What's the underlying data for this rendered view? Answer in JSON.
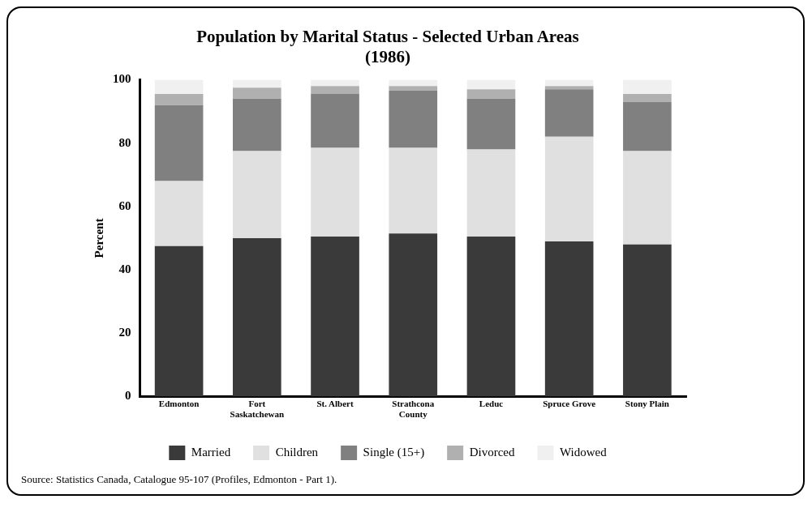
{
  "chart_data": {
    "type": "bar",
    "title": "Population by Marital Status - Selected Urban Areas",
    "subtitle": "(1986)",
    "ylabel": "Percent",
    "categories": [
      "Edmonton",
      "Fort\nSaskatchewan",
      "St. Albert",
      "Strathcona\nCounty",
      "Leduc",
      "Spruce Grove",
      "Stony Plain"
    ],
    "series": [
      {
        "name": "Married",
        "color": "#3a3a3a",
        "values": [
          47.5,
          50,
          50.5,
          51.5,
          50.5,
          49,
          48
        ]
      },
      {
        "name": "Children",
        "color": "#e0e0e0",
        "values": [
          20.5,
          27.5,
          28,
          27,
          27.5,
          33,
          29.5
        ]
      },
      {
        "name": "Single (15+)",
        "color": "#808080",
        "values": [
          24,
          16.5,
          17,
          18,
          16,
          15,
          15.5
        ]
      },
      {
        "name": "Divorced",
        "color": "#b0b0b0",
        "values": [
          3.5,
          3.5,
          2.5,
          1.5,
          3,
          1,
          2.5
        ]
      },
      {
        "name": "Widowed",
        "color": "#f0f0f0",
        "values": [
          4.5,
          2.5,
          2,
          2,
          3,
          2,
          4.5
        ]
      }
    ],
    "stacked": true,
    "ylim": [
      0,
      100
    ],
    "yticks": [
      0,
      20,
      40,
      60,
      80,
      100
    ],
    "grid": false,
    "legend": "bottom",
    "annotations": [
      "Source: Statistics Canada, Catalogue 95-107 (Profiles, Edmonton - Part 1)."
    ]
  }
}
